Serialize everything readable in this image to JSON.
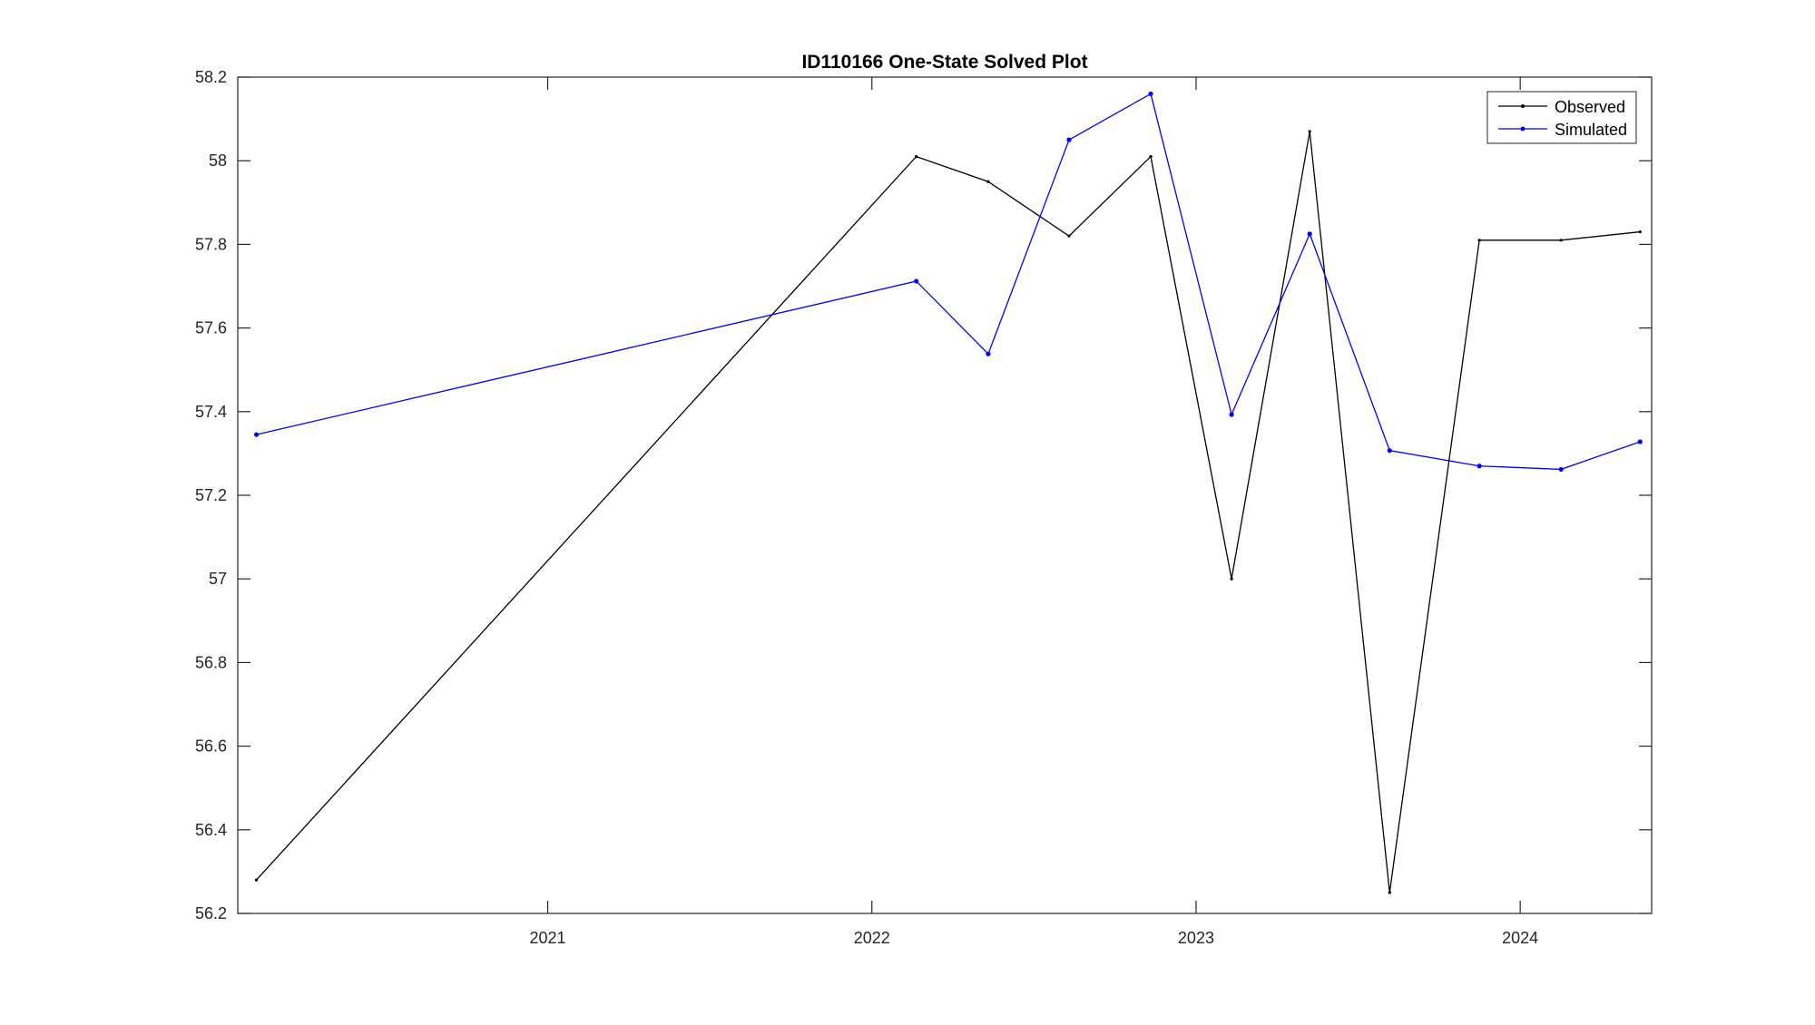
{
  "chart_data": {
    "type": "line",
    "title": "ID110166 One-State Solved Plot",
    "xlabel": "",
    "ylabel": "",
    "x_axis_type": "date",
    "xlim": [
      "2020-01-18",
      "2024-05-28"
    ],
    "ylim": [
      56.2,
      58.2
    ],
    "x_ticks": [
      {
        "value": "2021-01-01",
        "label": "2021"
      },
      {
        "value": "2022-01-01",
        "label": "2022"
      },
      {
        "value": "2023-01-01",
        "label": "2023"
      },
      {
        "value": "2024-01-01",
        "label": "2024"
      }
    ],
    "y_ticks": [
      56.2,
      56.4,
      56.6,
      56.8,
      57,
      57.2,
      57.4,
      57.6,
      57.8,
      58,
      58.2
    ],
    "y_tick_labels": [
      "56.2",
      "56.4",
      "56.6",
      "56.8",
      "57",
      "57.2",
      "57.4",
      "57.6",
      "57.8",
      "58",
      "58.2"
    ],
    "grid": false,
    "legend_position": "top-right",
    "series": [
      {
        "name": "Observed",
        "color": "#000000",
        "marker": "dot",
        "points": [
          {
            "x": "2020-02-08",
            "y": 56.28
          },
          {
            "x": "2022-02-20",
            "y": 58.01
          },
          {
            "x": "2022-05-12",
            "y": 57.95
          },
          {
            "x": "2022-08-11",
            "y": 57.82
          },
          {
            "x": "2022-11-11",
            "y": 58.01
          },
          {
            "x": "2023-02-10",
            "y": 57.0
          },
          {
            "x": "2023-05-09",
            "y": 58.07
          },
          {
            "x": "2023-08-07",
            "y": 56.25
          },
          {
            "x": "2023-11-16",
            "y": 57.81
          },
          {
            "x": "2024-02-16",
            "y": 57.81
          },
          {
            "x": "2024-05-15",
            "y": 57.83
          }
        ]
      },
      {
        "name": "Simulated",
        "color": "#0000ff",
        "marker": "dot",
        "points": [
          {
            "x": "2020-02-08",
            "y": 57.345
          },
          {
            "x": "2022-02-20",
            "y": 57.712
          },
          {
            "x": "2022-05-12",
            "y": 57.538
          },
          {
            "x": "2022-08-11",
            "y": 58.05
          },
          {
            "x": "2022-11-11",
            "y": 58.16
          },
          {
            "x": "2023-02-10",
            "y": 57.393
          },
          {
            "x": "2023-05-09",
            "y": 57.825
          },
          {
            "x": "2023-08-07",
            "y": 57.307
          },
          {
            "x": "2023-11-16",
            "y": 57.27
          },
          {
            "x": "2024-02-16",
            "y": 57.262
          },
          {
            "x": "2024-05-15",
            "y": 57.328
          }
        ]
      }
    ]
  }
}
